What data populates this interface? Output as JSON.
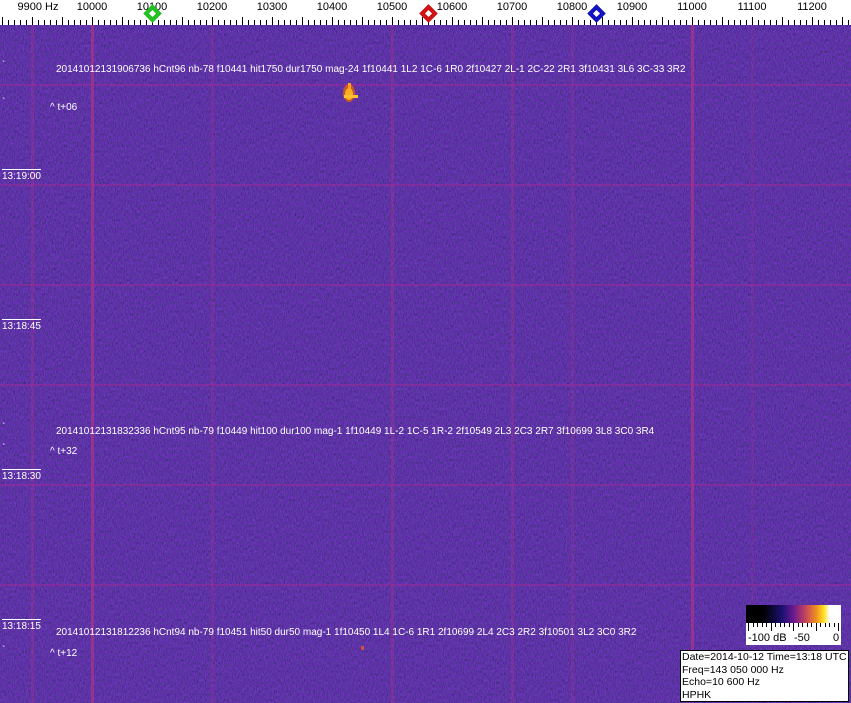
{
  "ruler": {
    "labels": [
      "9900 Hz",
      "10000",
      "10100",
      "10200",
      "10300",
      "10400",
      "10500",
      "10600",
      "10700",
      "10800",
      "10900",
      "11000",
      "11100",
      "11200"
    ],
    "markers": [
      {
        "name": "green",
        "freq_hz": 10100,
        "color": "#1fc01f"
      },
      {
        "name": "red",
        "freq_hz": 10560,
        "color": "#d01010"
      },
      {
        "name": "blue",
        "freq_hz": 10840,
        "color": "#1010c0"
      }
    ]
  },
  "detections": [
    {
      "text": "20141012131906736 hCnt96 nb-78 f10441 hit1750 dur1750 mag-24 1f10441 1L2 1C-6 1R0 2f10427 2L-1 2C-22 2R1 3f10431 3L6 3C-33 3R2",
      "offset": "^ t+06"
    },
    {
      "text": "20141012131832336 hCnt95 nb-79 f10449 hit100 dur100 mag-1 1f10449 1L-2 1C-5 1R-2 2f10549 2L3 2C3 2R7 3f10699 3L8 3C0 3R4",
      "offset": "^ t+32"
    },
    {
      "text": "20141012131812236 hCnt94 nb-79 f10451 hit50 dur50 mag-1 1f10450 1L4 1C-6 1R1 2f10699 2L4 2C3 2R2 3f10501 3L2 3C0 3R2",
      "offset": "^ t+12"
    }
  ],
  "time_labels": [
    "13:19:00",
    "13:18:45",
    "13:18:30",
    "13:18:15"
  ],
  "colorbar": {
    "labels": [
      "-100 dB",
      "-50",
      "0"
    ]
  },
  "info": {
    "date_time": "Date=2014-10-12 Time=13:18 UTC",
    "freq": "Freq=143 050 000 Hz",
    "echo": "Echo=10 600 Hz",
    "station": "HPHK"
  },
  "colors": {
    "background": "#1b1268",
    "grid": "#aa2896",
    "echo": "#ffb020"
  }
}
